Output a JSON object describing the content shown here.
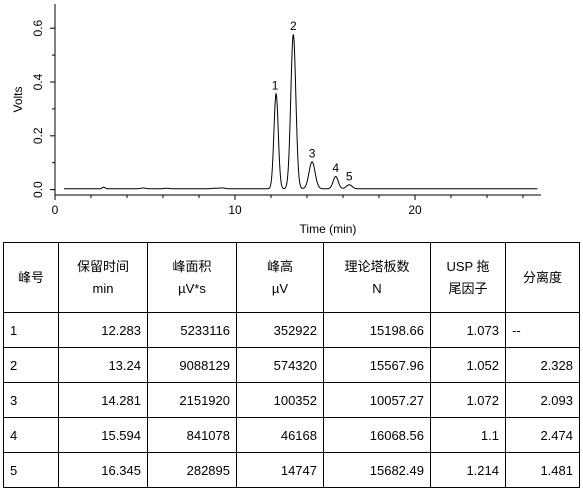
{
  "chart_data": {
    "type": "line",
    "xlabel": "Time (min)",
    "ylabel": "Volts",
    "xlim": [
      0,
      27
    ],
    "ylim": [
      -0.02,
      0.69
    ],
    "xticks": [
      0,
      10,
      20
    ],
    "yticks": [
      0.0,
      0.2,
      0.4,
      0.6
    ],
    "xtick_labels": [
      "0",
      "10",
      "20"
    ],
    "ytick_labels": [
      "0.0",
      "0.2",
      "0.4",
      "0.6"
    ],
    "peaks": [
      {
        "label": "1",
        "time": 12.283,
        "height": 0.353
      },
      {
        "label": "2",
        "time": 13.24,
        "height": 0.574
      },
      {
        "label": "3",
        "time": 14.281,
        "height": 0.1
      },
      {
        "label": "4",
        "time": 15.594,
        "height": 0.046
      },
      {
        "label": "5",
        "time": 16.345,
        "height": 0.015
      }
    ],
    "baseline_end_time": 26.8
  },
  "table": {
    "headers": [
      [
        "峰号"
      ],
      [
        "保留时间",
        "min"
      ],
      [
        "峰面积",
        "µV*s"
      ],
      [
        "峰高",
        "µV"
      ],
      [
        "理论塔板数",
        "N"
      ],
      [
        "USP 拖",
        "尾因子"
      ],
      [
        "分离度"
      ]
    ],
    "rows": [
      [
        "1",
        "12.283",
        "5233116",
        "352922",
        "15198.66",
        "1.073",
        "--"
      ],
      [
        "2",
        "13.24",
        "9088129",
        "574320",
        "15567.96",
        "1.052",
        "2.328"
      ],
      [
        "3",
        "14.281",
        "2151920",
        "100352",
        "10057.27",
        "1.072",
        "2.093"
      ],
      [
        "4",
        "15.594",
        "841078",
        "46168",
        "16068.56",
        "1.1",
        "2.474"
      ],
      [
        "5",
        "16.345",
        "282895",
        "14747",
        "15682.49",
        "1.214",
        "1.481"
      ]
    ]
  }
}
